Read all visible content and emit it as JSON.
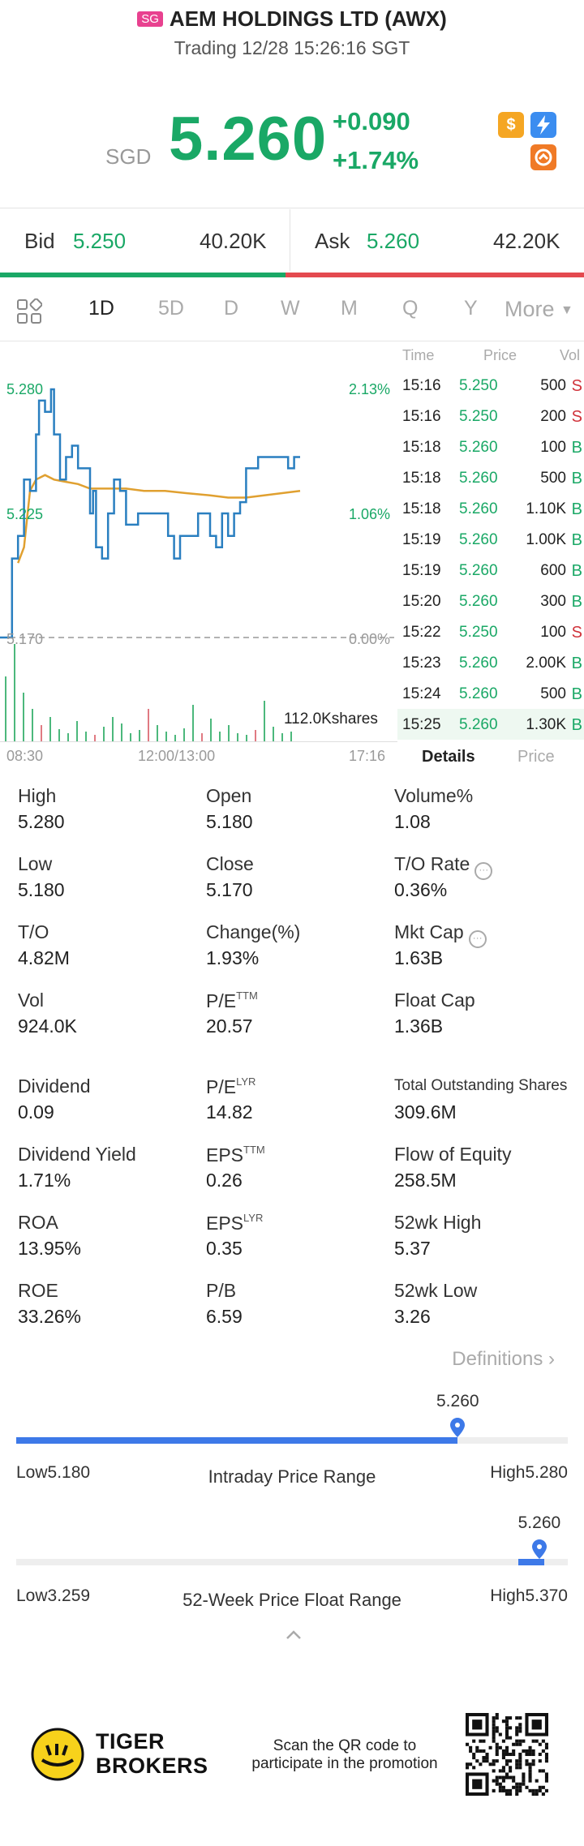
{
  "header": {
    "market_badge": "SG",
    "title": "AEM HOLDINGS LTD (AWX)",
    "subtitle": "Trading 12/28 15:26:16 SGT"
  },
  "quote": {
    "currency": "SGD",
    "price": "5.260",
    "change": "+0.090",
    "change_pct": "+1.74%",
    "icons": [
      "dollar-icon",
      "lightning-icon",
      "options-icon"
    ]
  },
  "bid_ask": {
    "bid_label": "Bid",
    "bid_price": "5.250",
    "bid_size": "40.20K",
    "ask_label": "Ask",
    "ask_price": "5.260",
    "ask_size": "42.20K"
  },
  "tabs": {
    "items": [
      "1D",
      "5D",
      "D",
      "W",
      "M",
      "Q",
      "Y"
    ],
    "active": "1D",
    "more_label": "More"
  },
  "chart": {
    "y_high": "5.280",
    "y_mid": "5.225",
    "y_low": "5.170",
    "pct_high": "2.13%",
    "pct_mid": "1.06%",
    "pct_low": "0.00%",
    "volume_label": "112.0Kshares",
    "x_start": "08:30",
    "x_mid": "12:00/13:00",
    "x_end": "17:16"
  },
  "chart_data": {
    "type": "line",
    "x_range": [
      "08:30",
      "17:16"
    ],
    "ylim": [
      5.17,
      5.28
    ],
    "series": [
      {
        "values": [
          [
            0,
            5.17
          ],
          [
            0.02,
            5.17
          ],
          [
            0.04,
            5.205
          ],
          [
            0.06,
            5.215
          ],
          [
            0.08,
            5.24
          ],
          [
            0.1,
            5.235
          ],
          [
            0.12,
            5.26
          ],
          [
            0.13,
            5.275
          ],
          [
            0.15,
            5.27
          ],
          [
            0.17,
            5.28
          ],
          [
            0.18,
            5.26
          ],
          [
            0.2,
            5.24
          ],
          [
            0.22,
            5.25
          ],
          [
            0.24,
            5.255
          ],
          [
            0.26,
            5.245
          ],
          [
            0.28,
            5.245
          ],
          [
            0.3,
            5.225
          ],
          [
            0.31,
            5.235
          ],
          [
            0.32,
            5.21
          ],
          [
            0.34,
            5.205
          ],
          [
            0.36,
            5.225
          ],
          [
            0.38,
            5.24
          ],
          [
            0.4,
            5.235
          ],
          [
            0.42,
            5.22
          ],
          [
            0.44,
            5.22
          ],
          [
            0.46,
            5.225
          ],
          [
            0.48,
            5.225
          ],
          [
            0.52,
            5.225
          ],
          [
            0.55,
            5.225
          ],
          [
            0.56,
            5.215
          ],
          [
            0.58,
            5.205
          ],
          [
            0.6,
            5.215
          ],
          [
            0.62,
            5.215
          ],
          [
            0.64,
            5.215
          ],
          [
            0.66,
            5.225
          ],
          [
            0.68,
            5.225
          ],
          [
            0.7,
            5.215
          ],
          [
            0.72,
            5.21
          ],
          [
            0.74,
            5.225
          ],
          [
            0.76,
            5.215
          ],
          [
            0.78,
            5.225
          ],
          [
            0.8,
            5.23
          ],
          [
            0.82,
            5.245
          ],
          [
            0.84,
            5.245
          ],
          [
            0.86,
            5.25
          ],
          [
            0.88,
            5.25
          ],
          [
            0.9,
            5.25
          ],
          [
            0.92,
            5.25
          ],
          [
            0.94,
            5.25
          ],
          [
            0.96,
            5.245
          ],
          [
            0.98,
            5.25
          ],
          [
            1.0,
            5.25
          ]
        ]
      },
      {
        "values": [
          [
            0.06,
            5.203
          ],
          [
            0.08,
            5.21
          ],
          [
            0.1,
            5.235
          ],
          [
            0.12,
            5.24
          ],
          [
            0.15,
            5.242
          ],
          [
            0.18,
            5.24
          ],
          [
            0.22,
            5.239
          ],
          [
            0.26,
            5.238
          ],
          [
            0.3,
            5.236
          ],
          [
            0.36,
            5.236
          ],
          [
            0.42,
            5.236
          ],
          [
            0.48,
            5.235
          ],
          [
            0.55,
            5.235
          ],
          [
            0.62,
            5.234
          ],
          [
            0.7,
            5.233
          ],
          [
            0.76,
            5.232
          ],
          [
            0.82,
            5.232
          ],
          [
            0.88,
            5.233
          ],
          [
            0.94,
            5.234
          ],
          [
            1.0,
            5.235
          ]
        ]
      }
    ]
  },
  "trades": {
    "headers": [
      "Time",
      "Price",
      "Vol"
    ],
    "rows": [
      {
        "time": "15:16",
        "price": "5.250",
        "vol": "500",
        "side": "S"
      },
      {
        "time": "15:16",
        "price": "5.250",
        "vol": "200",
        "side": "S"
      },
      {
        "time": "15:18",
        "price": "5.260",
        "vol": "100",
        "side": "B"
      },
      {
        "time": "15:18",
        "price": "5.260",
        "vol": "500",
        "side": "B"
      },
      {
        "time": "15:18",
        "price": "5.260",
        "vol": "1.10K",
        "side": "B"
      },
      {
        "time": "15:19",
        "price": "5.260",
        "vol": "1.00K",
        "side": "B"
      },
      {
        "time": "15:19",
        "price": "5.260",
        "vol": "600",
        "side": "B"
      },
      {
        "time": "15:20",
        "price": "5.260",
        "vol": "300",
        "side": "B"
      },
      {
        "time": "15:22",
        "price": "5.250",
        "vol": "100",
        "side": "S"
      },
      {
        "time": "15:23",
        "price": "5.260",
        "vol": "2.00K",
        "side": "B"
      },
      {
        "time": "15:24",
        "price": "5.260",
        "vol": "500",
        "side": "B"
      },
      {
        "time": "15:25",
        "price": "5.260",
        "vol": "1.30K",
        "side": "B"
      }
    ],
    "tab_details": "Details",
    "tab_price": "Price"
  },
  "stats": {
    "high_l": "High",
    "high_v": "5.280",
    "open_l": "Open",
    "open_v": "5.180",
    "volpct_l": "Volume%",
    "volpct_v": "1.08",
    "low_l": "Low",
    "low_v": "5.180",
    "close_l": "Close",
    "close_v": "5.170",
    "torate_l": "T/O Rate",
    "torate_v": "0.36%",
    "to_l": "T/O",
    "to_v": "4.82M",
    "changepct_l": "Change(%)",
    "changepct_v": "1.93%",
    "mktcap_l": "Mkt Cap",
    "mktcap_v": "1.63B",
    "vol_l": "Vol",
    "vol_v": "924.0K",
    "pettm_l": "P/E",
    "pettm_sup": "TTM",
    "pettm_v": "20.57",
    "floatcap_l": "Float Cap",
    "floatcap_v": "1.36B",
    "dividend_l": "Dividend",
    "dividend_v": "0.09",
    "pelyr_l": "P/E",
    "pelyr_sup": "LYR",
    "pelyr_v": "14.82",
    "tos_l": "Total Outstanding Shares",
    "tos_v": "309.6M",
    "divyield_l": "Dividend Yield",
    "divyield_v": "1.71%",
    "epsttm_l": "EPS",
    "epsttm_sup": "TTM",
    "epsttm_v": "0.26",
    "foe_l": "Flow of Equity",
    "foe_v": "258.5M",
    "roa_l": "ROA",
    "roa_v": "13.95%",
    "epslyr_l": "EPS",
    "epslyr_sup": "LYR",
    "epslyr_v": "0.35",
    "wk52h_l": "52wk High",
    "wk52h_v": "5.37",
    "roe_l": "ROE",
    "roe_v": "33.26%",
    "pb_l": "P/B",
    "pb_v": "6.59",
    "wk52l_l": "52wk Low",
    "wk52l_v": "3.26"
  },
  "definitions_label": "Definitions",
  "intraday_range": {
    "label": "Intraday Price Range",
    "low_text": "Low5.180",
    "high_text": "High5.280",
    "current": "5.260",
    "position_fraction": 0.8
  },
  "week52_range": {
    "label": "52-Week Price Float Range",
    "low_text": "Low3.259",
    "high_text": "High5.370",
    "current": "5.260",
    "position_fraction": 0.948
  },
  "footer": {
    "brand_line1": "TIGER",
    "brand_line2": "BROKERS",
    "promo_line1": "Scan the QR code to",
    "promo_line2": "participate in the promotion"
  },
  "colors": {
    "up": "#1aa866",
    "down": "#d0323a",
    "price_line": "#2a7fc0",
    "avg_line": "#e0a030",
    "range_fill": "#3d79e8"
  }
}
